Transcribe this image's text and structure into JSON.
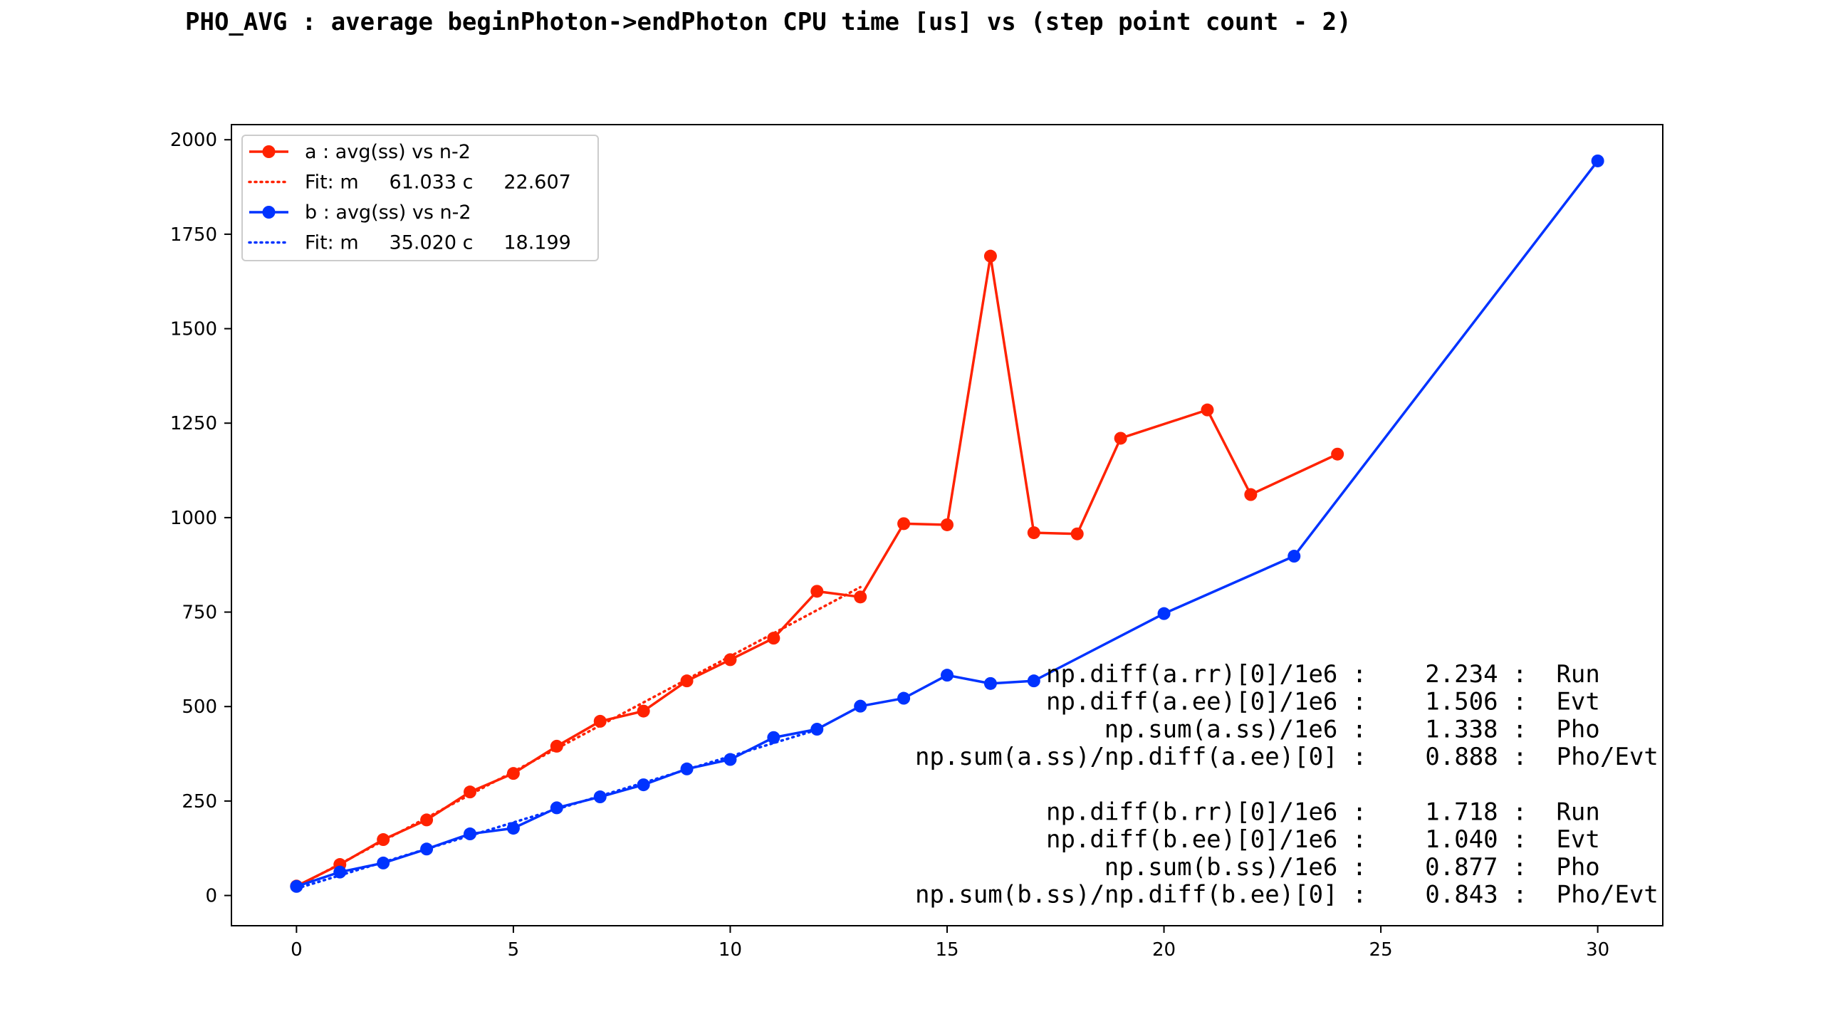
{
  "chart_data": {
    "type": "line",
    "title": "PHO_AVG : average beginPhoton->endPhoton CPU time [us] vs (step point count - 2)",
    "xlim": [
      -1.5,
      31.5
    ],
    "ylim": [
      -80,
      2040
    ],
    "xticks": [
      0,
      5,
      10,
      15,
      20,
      25,
      30
    ],
    "yticks": [
      0,
      250,
      500,
      750,
      1000,
      1250,
      1500,
      1750,
      2000
    ],
    "grid": false,
    "legend_position": "top-left",
    "series": [
      {
        "name": "a : avg(ss) vs n-2",
        "color": "#ff2200",
        "style": "solid-markers",
        "x": [
          0,
          1,
          2,
          3,
          4,
          5,
          6,
          7,
          8,
          9,
          10,
          11,
          12,
          13,
          14,
          15,
          16,
          17,
          18,
          19,
          21,
          22,
          24
        ],
        "y": [
          25,
          82,
          148,
          200,
          274,
          323,
          395,
          461,
          488,
          568,
          624,
          681,
          805,
          790,
          984,
          981,
          1692,
          960,
          957,
          1210,
          1285,
          1061,
          1168
        ]
      },
      {
        "name": "Fit: m     61.033 c     22.607",
        "color": "#ff2200",
        "style": "dotted",
        "fit_m": 61.033,
        "fit_c": 22.607,
        "x_range": [
          0,
          13
        ]
      },
      {
        "name": "b : avg(ss) vs n-2",
        "color": "#0033ff",
        "style": "solid-markers",
        "x": [
          0,
          1,
          2,
          3,
          4,
          5,
          6,
          7,
          8,
          9,
          10,
          11,
          12,
          13,
          14,
          15,
          16,
          17,
          20,
          23,
          30
        ],
        "y": [
          24,
          62,
          86,
          123,
          163,
          178,
          232,
          261,
          293,
          335,
          360,
          418,
          440,
          501,
          522,
          583,
          561,
          568,
          746,
          898,
          1944
        ]
      },
      {
        "name": "Fit: m     35.020 c     18.199",
        "color": "#0033ff",
        "style": "dotted",
        "fit_m": 35.02,
        "fit_c": 18.199,
        "x_range": [
          0,
          12
        ]
      }
    ],
    "annotations": [
      "np.diff(a.rr)[0]/1e6 :    2.234 :  Run",
      "np.diff(a.ee)[0]/1e6 :    1.506 :  Evt",
      "np.sum(a.ss)/1e6 :    1.338 :  Pho",
      "np.sum(a.ss)/np.diff(a.ee)[0] :    0.888 :  Pho/Evt",
      "",
      "np.diff(b.rr)[0]/1e6 :    1.718 :  Run",
      "np.diff(b.ee)[0]/1e6 :    1.040 :  Evt",
      "np.sum(b.ss)/1e6 :    0.877 :  Pho",
      "np.sum(b.ss)/np.diff(b.ee)[0] :    0.843 :  Pho/Evt"
    ]
  }
}
